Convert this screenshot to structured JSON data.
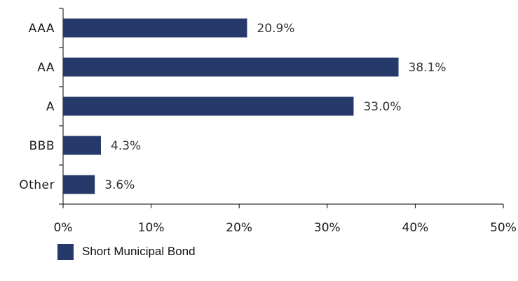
{
  "chart_data": {
    "type": "bar",
    "orientation": "horizontal",
    "categories": [
      "AAA",
      "AA",
      "A",
      "BBB",
      "Other"
    ],
    "series": [
      {
        "name": "Short Municipal Bond",
        "values": [
          20.9,
          38.1,
          33.0,
          4.3,
          3.6
        ],
        "labels": [
          "20.9%",
          "38.1%",
          "33.0%",
          "4.3%",
          "3.6%"
        ],
        "color": "#25396a"
      }
    ],
    "xlim": [
      0,
      50
    ],
    "xticks": [
      "0%",
      "10%",
      "20%",
      "30%",
      "40%",
      "50%"
    ],
    "grid": false,
    "legend_position": "bottom-left"
  }
}
